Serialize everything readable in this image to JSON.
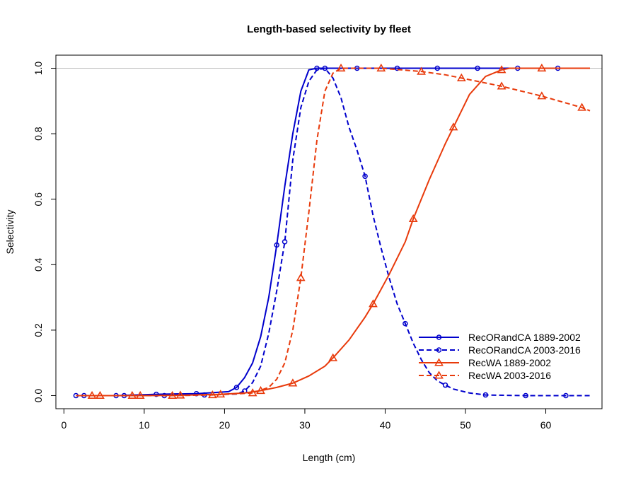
{
  "chart_data": {
    "type": "line",
    "title": "Length-based selectivity by fleet",
    "xlabel": "Length (cm)",
    "ylabel": "Selectivity",
    "xlim": [
      -1,
      67
    ],
    "ylim": [
      -0.04,
      1.04
    ],
    "x_ticks": [
      0,
      10,
      20,
      30,
      40,
      50,
      60
    ],
    "y_ticks": [
      0.0,
      0.2,
      0.4,
      0.6,
      0.8,
      1.0
    ],
    "x_tick_labels": [
      "0",
      "10",
      "20",
      "30",
      "40",
      "50",
      "60"
    ],
    "y_tick_labels": [
      "0.0",
      "0.2",
      "0.4",
      "0.6",
      "0.8",
      "1.0"
    ],
    "reference_line_y": 1.0,
    "legend_position": "bottom-right",
    "series": [
      {
        "name": "RecORandCA 1889-2002",
        "color": "#0000CC",
        "dash": "solid",
        "marker": "circle",
        "points": [
          [
            1.5,
            0.0
          ],
          [
            6.5,
            0.0
          ],
          [
            11.5,
            0.004
          ],
          [
            16.5,
            0.006
          ],
          [
            20.5,
            0.012
          ],
          [
            21.5,
            0.025
          ],
          [
            22.5,
            0.055
          ],
          [
            23.5,
            0.1
          ],
          [
            24.5,
            0.18
          ],
          [
            25.5,
            0.3
          ],
          [
            26.5,
            0.46
          ],
          [
            27.5,
            0.64
          ],
          [
            28.5,
            0.8
          ],
          [
            29.5,
            0.93
          ],
          [
            30.5,
            0.995
          ],
          [
            31.5,
            1.0
          ],
          [
            36.5,
            1.0
          ],
          [
            41.5,
            1.0
          ],
          [
            46.5,
            1.0
          ],
          [
            51.5,
            1.0
          ],
          [
            56.5,
            1.0
          ],
          [
            61.5,
            1.0
          ],
          [
            65.5,
            1.0
          ]
        ],
        "marker_x": [
          1.5,
          6.5,
          11.5,
          16.5,
          21.5,
          26.5,
          31.5,
          36.5,
          41.5,
          46.5,
          51.5,
          56.5,
          61.5
        ]
      },
      {
        "name": "RecORandCA 2003-2016",
        "color": "#0000CC",
        "dash": "dashed",
        "marker": "circle",
        "points": [
          [
            2.5,
            0.0
          ],
          [
            7.5,
            0.0
          ],
          [
            12.5,
            0.0
          ],
          [
            17.5,
            0.002
          ],
          [
            21.5,
            0.005
          ],
          [
            22.5,
            0.014
          ],
          [
            23.5,
            0.04
          ],
          [
            24.5,
            0.09
          ],
          [
            25.5,
            0.19
          ],
          [
            26.5,
            0.32
          ],
          [
            27.5,
            0.47
          ],
          [
            28.5,
            0.72
          ],
          [
            29.5,
            0.88
          ],
          [
            30.5,
            0.96
          ],
          [
            31.5,
            0.995
          ],
          [
            32.5,
            1.0
          ],
          [
            33.5,
            0.97
          ],
          [
            34.5,
            0.91
          ],
          [
            35.5,
            0.82
          ],
          [
            36.5,
            0.75
          ],
          [
            37.5,
            0.67
          ],
          [
            38.5,
            0.55
          ],
          [
            39.5,
            0.45
          ],
          [
            40.5,
            0.36
          ],
          [
            41.5,
            0.28
          ],
          [
            42.5,
            0.22
          ],
          [
            43.5,
            0.16
          ],
          [
            44.5,
            0.11
          ],
          [
            45.5,
            0.07
          ],
          [
            46.5,
            0.045
          ],
          [
            47.5,
            0.032
          ],
          [
            48.5,
            0.02
          ],
          [
            50.5,
            0.008
          ],
          [
            52.5,
            0.002
          ],
          [
            57.5,
            0.0
          ],
          [
            62.5,
            0.0
          ],
          [
            65.5,
            0.0
          ]
        ],
        "marker_x": [
          2.5,
          7.5,
          12.5,
          17.5,
          22.5,
          27.5,
          32.5,
          37.5,
          42.5,
          47.5,
          52.5,
          57.5,
          62.5
        ]
      },
      {
        "name": "RecWA 1889-2002",
        "color": "#E83A0B",
        "dash": "solid",
        "marker": "triangle",
        "points": [
          [
            1.5,
            0.0
          ],
          [
            4.5,
            0.0
          ],
          [
            9.5,
            0.0
          ],
          [
            14.5,
            0.001
          ],
          [
            19.5,
            0.004
          ],
          [
            22.5,
            0.008
          ],
          [
            24.5,
            0.015
          ],
          [
            26.5,
            0.025
          ],
          [
            28.5,
            0.038
          ],
          [
            30.5,
            0.06
          ],
          [
            32.5,
            0.09
          ],
          [
            33.5,
            0.115
          ],
          [
            35.5,
            0.17
          ],
          [
            37.5,
            0.24
          ],
          [
            38.5,
            0.28
          ],
          [
            40.5,
            0.37
          ],
          [
            42.5,
            0.47
          ],
          [
            43.5,
            0.54
          ],
          [
            45.5,
            0.66
          ],
          [
            47.5,
            0.77
          ],
          [
            48.5,
            0.82
          ],
          [
            50.5,
            0.92
          ],
          [
            52.5,
            0.975
          ],
          [
            54.5,
            0.995
          ],
          [
            55.5,
            1.0
          ],
          [
            59.5,
            1.0
          ],
          [
            65.5,
            1.0
          ]
        ],
        "marker_x": [
          4.5,
          9.5,
          14.5,
          19.5,
          24.5,
          28.5,
          33.5,
          38.5,
          43.5,
          48.5,
          54.5,
          59.5
        ]
      },
      {
        "name": "RecWA 2003-2016",
        "color": "#E83A0B",
        "dash": "dashed",
        "marker": "triangle",
        "points": [
          [
            3.5,
            0.0
          ],
          [
            8.5,
            0.0
          ],
          [
            13.5,
            0.0
          ],
          [
            18.5,
            0.002
          ],
          [
            23.5,
            0.008
          ],
          [
            25.5,
            0.025
          ],
          [
            26.5,
            0.05
          ],
          [
            27.5,
            0.1
          ],
          [
            28.5,
            0.2
          ],
          [
            29.5,
            0.36
          ],
          [
            30.5,
            0.56
          ],
          [
            31.5,
            0.78
          ],
          [
            32.5,
            0.93
          ],
          [
            33.5,
            0.985
          ],
          [
            34.5,
            1.0
          ],
          [
            39.5,
            1.0
          ],
          [
            44.5,
            0.99
          ],
          [
            47.5,
            0.98
          ],
          [
            49.5,
            0.97
          ],
          [
            54.5,
            0.945
          ],
          [
            59.5,
            0.915
          ],
          [
            64.5,
            0.88
          ],
          [
            65.5,
            0.87
          ]
        ],
        "marker_x": [
          3.5,
          8.5,
          13.5,
          18.5,
          23.5,
          29.5,
          34.5,
          39.5,
          44.5,
          49.5,
          54.5,
          59.5,
          64.5
        ]
      }
    ]
  }
}
